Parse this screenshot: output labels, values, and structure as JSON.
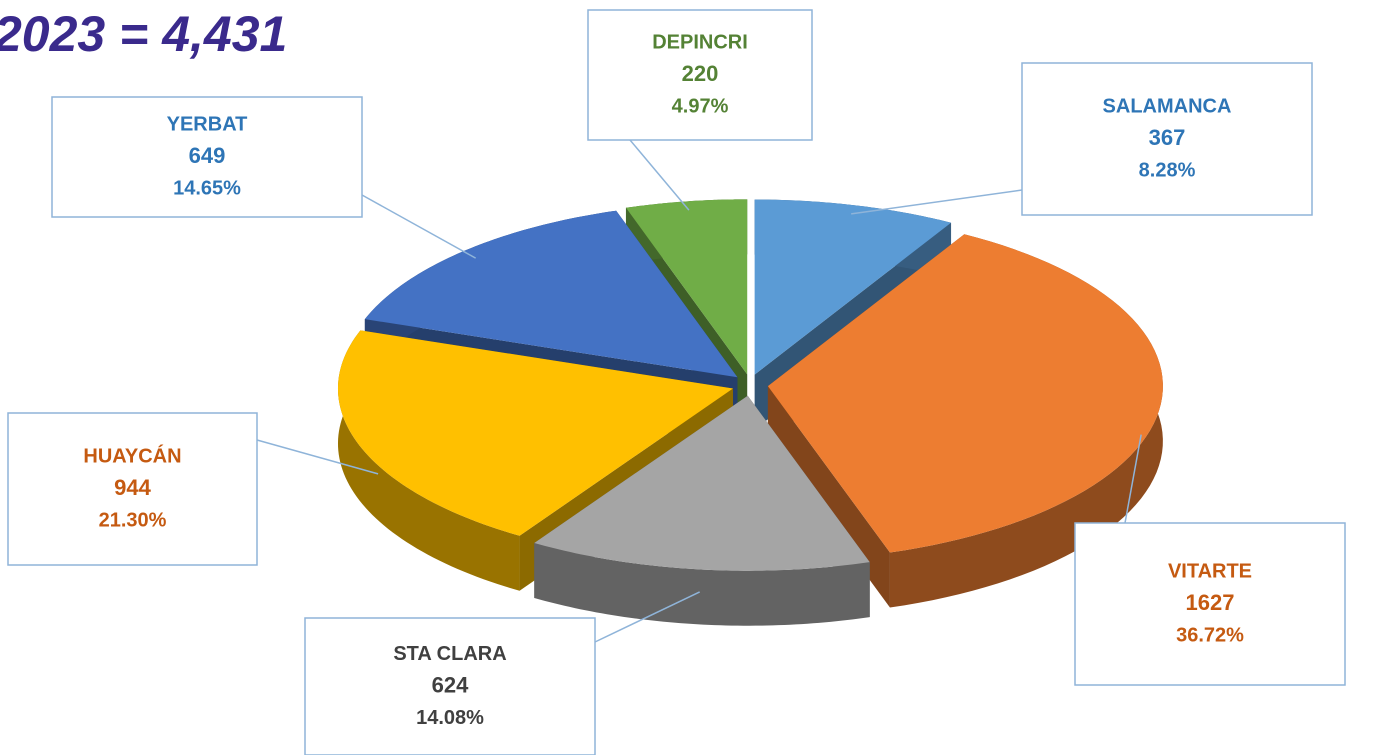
{
  "chart_data": {
    "type": "pie",
    "title": "2023 = 4,431",
    "categories": [
      "SALAMANCA",
      "VITARTE",
      "STA CLARA",
      "HUAYCÁN",
      "YERBAT",
      "DEPINCRI"
    ],
    "values": [
      367,
      1627,
      624,
      944,
      649,
      220
    ],
    "percent_labels": [
      "8.28%",
      "36.72%",
      "14.08%",
      "21.30%",
      "14.65%",
      "4.97%"
    ],
    "colors": [
      "#5b9bd5",
      "#ed7d31",
      "#a5a5a5",
      "#ffc000",
      "#4472c4",
      "#70ad47"
    ],
    "label_colors": [
      "#2e75b6",
      "#c55a11",
      "#404040",
      "#c55a11",
      "#2e75b6",
      "#548235"
    ]
  }
}
